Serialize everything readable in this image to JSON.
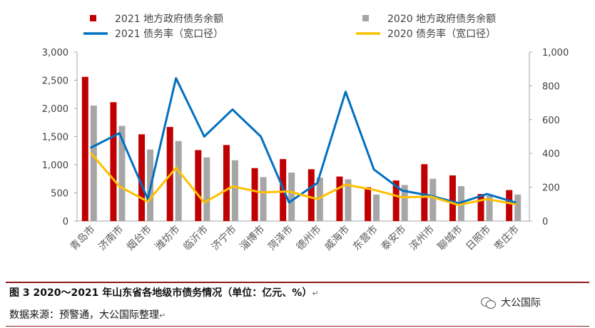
{
  "chart_data": {
    "type": "bar+line",
    "categories": [
      "青岛市",
      "济南市",
      "烟台市",
      "潍坊市",
      "临沂市",
      "济宁市",
      "淄博市",
      "菏泽市",
      "德州市",
      "威海市",
      "东营市",
      "泰安市",
      "滨州市",
      "聊城市",
      "日照市",
      "枣庄市"
    ],
    "bar_series": [
      {
        "name": "2021 地方政府债务余额",
        "color": "#c00000",
        "axis": "left",
        "values": [
          2560,
          2110,
          1540,
          1670,
          1260,
          1350,
          940,
          1100,
          920,
          790,
          600,
          720,
          1010,
          810,
          480,
          550
        ]
      },
      {
        "name": "2020 地方政府债务余额",
        "color": "#a6a6a6",
        "axis": "left",
        "values": [
          2050,
          1690,
          1270,
          1420,
          1130,
          1080,
          780,
          860,
          770,
          740,
          470,
          640,
          750,
          620,
          450,
          470
        ]
      }
    ],
    "line_series": [
      {
        "name": "2021 债务率（宽口径）",
        "color": "#0070c0",
        "axis": "right",
        "values": [
          435,
          520,
          130,
          845,
          500,
          660,
          500,
          110,
          225,
          765,
          305,
          180,
          150,
          105,
          160,
          110
        ]
      },
      {
        "name": "2020 债务率（宽口径）",
        "color": "#ffc000",
        "axis": "right",
        "values": [
          400,
          205,
          115,
          315,
          110,
          205,
          170,
          175,
          130,
          215,
          185,
          140,
          145,
          95,
          130,
          100
        ]
      }
    ],
    "y_left": {
      "min": 0,
      "max": 3000,
      "ticks": [
        "0",
        "500",
        "1,000",
        "1,500",
        "2,000",
        "2,500",
        "3,000"
      ]
    },
    "y_right": {
      "min": 0,
      "max": 1000,
      "ticks": [
        "0",
        "200",
        "400",
        "600",
        "800",
        "1,000"
      ]
    },
    "legend_position": "top",
    "grid": false
  },
  "footer": {
    "caption": "图 3   2020～2021 年山东省各地级市债务情况（单位：亿元、%）",
    "caption_mark": "↵",
    "source": "数据来源：预警通，大公国际整理",
    "source_mark": "↵",
    "brand": "大公国际"
  }
}
